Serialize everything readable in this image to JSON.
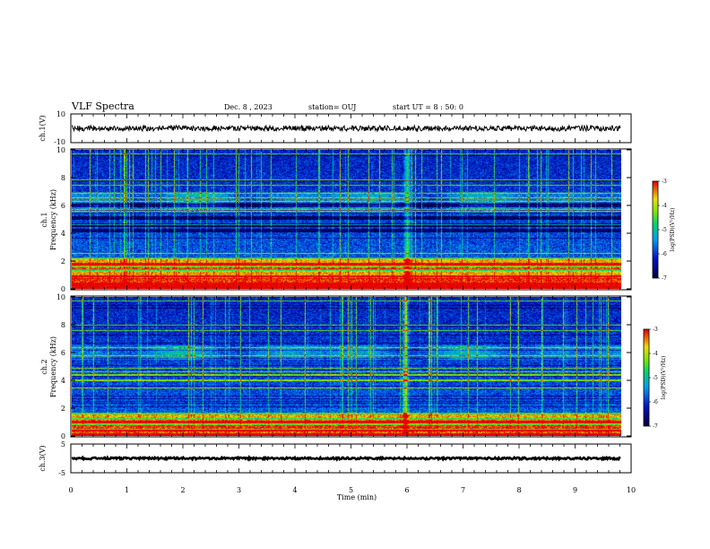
{
  "header": {
    "title": "VLF Spectra",
    "date": "Dec. 8 , 2023",
    "station": "station= OUJ",
    "start": "start UT = 8 : 50: 0"
  },
  "colors": {
    "background": "#ffffff",
    "axes": "#000000",
    "trace": "#000000",
    "spectrogram_low": "#000040",
    "spectrogram_high": "#ff0000"
  },
  "chart_data": [
    {
      "id": "ch1-waveform",
      "type": "line",
      "ylabel": "ch.1(V)",
      "ylim": [
        -10,
        10
      ],
      "yticks": [
        "10",
        "-10"
      ],
      "xlim": [
        0,
        10
      ],
      "series": [
        {
          "values_description_level": 0,
          "mean_v": 0,
          "noise_amplitude_v": 2
        }
      ]
    },
    {
      "id": "ch1-spectrogram",
      "type": "heatmap",
      "ylabel": "ch.1 Frequency (kHz)",
      "ylim": [
        0,
        10
      ],
      "yticks": [
        "0",
        "2",
        "4",
        "6",
        "8",
        "10"
      ],
      "xlim": [
        0,
        9.8
      ],
      "colorbar": {
        "label": "log(PSD)(V²/Hz)",
        "range": [
          -7,
          -3
        ],
        "ticks": [
          "-3",
          "-4",
          "-5",
          "-6",
          "-7"
        ]
      },
      "features": {
        "strong_bands_khz": [
          0.3,
          0.55,
          0.8,
          1.05,
          1.5,
          1.75,
          2.0
        ],
        "dark_bands_khz": [
          4.2,
          4.6,
          5.1,
          6.0
        ],
        "hiss_band_khz": [
          5.5,
          7.0
        ],
        "spike_event_min": 5.98
      }
    },
    {
      "id": "ch2-spectrogram",
      "type": "heatmap",
      "ylabel": "ch.2 Frequency (kHz)",
      "ylim": [
        0,
        10
      ],
      "yticks": [
        "0",
        "2",
        "4",
        "6",
        "8",
        "10"
      ],
      "xlim": [
        0,
        9.8
      ],
      "colorbar": {
        "label": "log(PSD)(V²/Hz)",
        "range": [
          -7,
          -3
        ],
        "ticks": [
          "-3",
          "-4",
          "-5",
          "-6",
          "-7"
        ]
      },
      "features": {
        "strong_bands_khz": [
          0.3,
          0.6,
          1.0,
          1.4
        ],
        "hiss_band_khz": [
          5.5,
          6.5
        ],
        "spike_event_min": 5.95
      }
    },
    {
      "id": "ch3-waveform",
      "type": "line",
      "ylabel": "ch.3(V)",
      "ylim": [
        -5,
        5
      ],
      "yticks": [
        "5",
        "-5"
      ],
      "xlim": [
        0,
        10
      ],
      "series": [
        {
          "mean_v": -1,
          "noise_amplitude_v": 0.3
        }
      ]
    }
  ],
  "xaxis": {
    "label": "Time (min)",
    "ticks": [
      "0",
      "1",
      "2",
      "3",
      "4",
      "5",
      "6",
      "7",
      "8",
      "9",
      "10"
    ]
  }
}
